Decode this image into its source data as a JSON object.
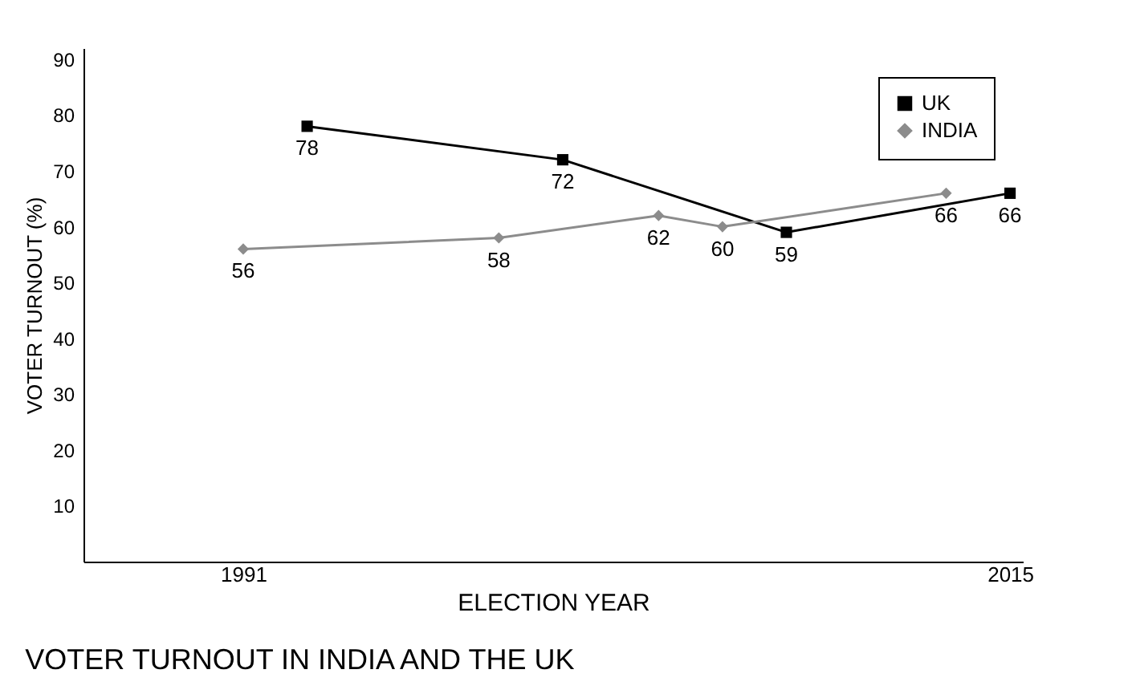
{
  "chart_data": {
    "type": "line",
    "title": "VOTER TURNOUT IN INDIA AND THE UK",
    "xlabel": "ELECTION YEAR",
    "ylabel": "VOTER TURNOUT (%)",
    "series": [
      {
        "name": "UK",
        "color": "#000000",
        "marker": "square",
        "x": [
          1993,
          2001,
          2008,
          2015
        ],
        "values": [
          78,
          72,
          59,
          66
        ]
      },
      {
        "name": "INDIA",
        "color": "#8c8c8c",
        "marker": "diamond",
        "x": [
          1991,
          1999,
          2004,
          2006,
          2013
        ],
        "values": [
          56,
          58,
          62,
          60,
          66
        ]
      }
    ],
    "xlim": [
      1986,
      2015.4
    ],
    "xticks": [
      1991,
      2015
    ],
    "ylim": [
      0,
      92
    ],
    "yticks": [
      10,
      20,
      30,
      40,
      50,
      60,
      70,
      80,
      90
    ],
    "data_labels": true,
    "legend": "top right",
    "grid": false
  }
}
